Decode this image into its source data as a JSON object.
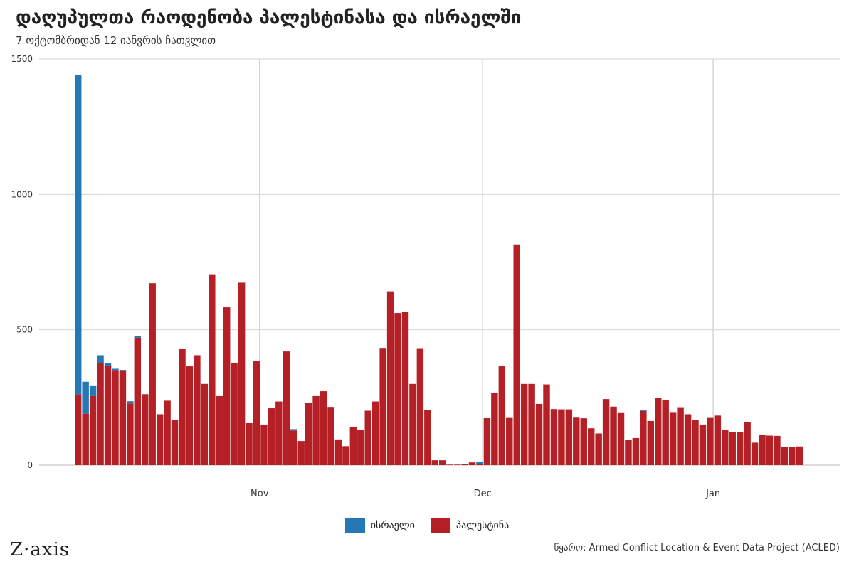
{
  "title": "დაღუპულთა რაოდენობა პალესტინასა და ისრაელში",
  "subtitle": "7 ოქტომბრიდან 12 იანვრის ჩათვლით",
  "logo": "Z·axis",
  "source": "წყარო: Armed Conflict Location & Event Data Project (ACLED)",
  "colors": {
    "israel": "#2478b6",
    "palestine": "#b42025",
    "grid": "#d6d6d6",
    "text": "#333333"
  },
  "legend": [
    {
      "label": "ისრაელი",
      "color": "#2478b6"
    },
    {
      "label": "პალესტინა",
      "color": "#b42025"
    }
  ],
  "chart_data": {
    "type": "bar",
    "stacked": true,
    "x_start": "2023-10-07",
    "x_end": "2024-01-12",
    "ylim": [
      0,
      1500
    ],
    "yticks": [
      0,
      500,
      1000,
      1500
    ],
    "xticks": [
      {
        "date": "2023-11-01",
        "label": "Nov"
      },
      {
        "date": "2023-12-01",
        "label": "Dec"
      },
      {
        "date": "2024-01-01",
        "label": "Jan"
      }
    ],
    "grid": true,
    "legend_position": "bottom",
    "series": [
      {
        "name": "პალესტინა",
        "color": "#b42025",
        "values": [
          262,
          190,
          255,
          376,
          366,
          351,
          350,
          228,
          471,
          262,
          672,
          188,
          238,
          168,
          430,
          365,
          406,
          300,
          705,
          255,
          583,
          377,
          674,
          155,
          385,
          150,
          210,
          235,
          420,
          128,
          89,
          230,
          255,
          273,
          215,
          95,
          70,
          140,
          130,
          201,
          235,
          433,
          642,
          562,
          566,
          300,
          432,
          203,
          18,
          18,
          2,
          2,
          3,
          10,
          5,
          175,
          268,
          365,
          177,
          815,
          300,
          300,
          226,
          298,
          207,
          206,
          206,
          178,
          173,
          136,
          117,
          244,
          216,
          195,
          92,
          100,
          200,
          163,
          249,
          240,
          196,
          214,
          188,
          168,
          150,
          177,
          183,
          131,
          122,
          122,
          160,
          83,
          111,
          109,
          108,
          66,
          68,
          69
        ]
      },
      {
        "name": "ისრაელი",
        "color": "#2478b6",
        "values": [
          1180,
          118,
          37,
          30,
          10,
          5,
          2,
          8,
          5,
          0,
          0,
          0,
          0,
          0,
          0,
          0,
          0,
          0,
          0,
          0,
          0,
          0,
          0,
          0,
          0,
          0,
          0,
          0,
          0,
          5,
          0,
          0,
          0,
          0,
          0,
          0,
          0,
          0,
          0,
          0,
          0,
          0,
          0,
          0,
          0,
          0,
          0,
          0,
          0,
          0,
          0,
          0,
          0,
          0,
          8,
          0,
          0,
          0,
          0,
          0,
          0,
          0,
          0,
          0,
          0,
          0,
          0,
          0,
          0,
          0,
          0,
          0,
          0,
          0,
          0,
          0,
          3,
          0,
          0,
          0,
          0,
          0,
          0,
          0,
          0,
          0,
          0,
          0,
          0,
          0,
          0,
          0,
          0,
          0,
          0,
          0,
          0,
          0
        ]
      }
    ]
  }
}
